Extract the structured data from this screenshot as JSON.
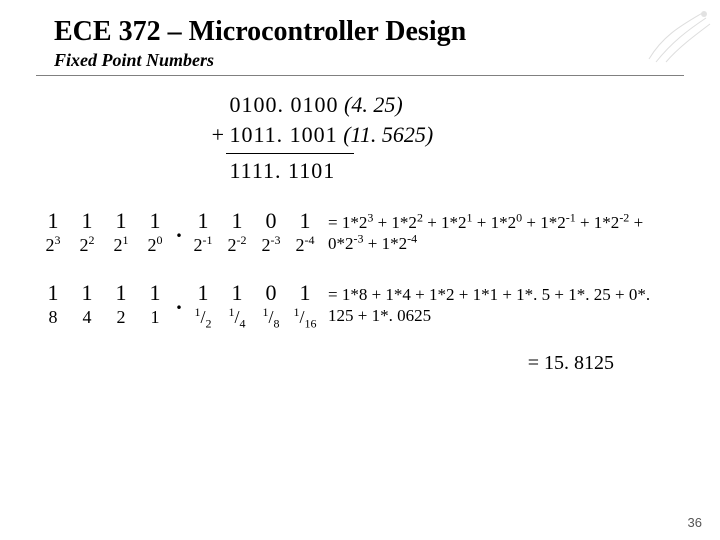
{
  "title": "ECE 372 – Microcontroller Design",
  "subtitle": "Fixed Point Numbers",
  "page_number": "36",
  "colors": {
    "text": "#000000",
    "background": "#ffffff",
    "rule": "#808080"
  },
  "equation": {
    "line1_bits": "0100. 0100",
    "line1_val": "(4. 25)",
    "plus": "+",
    "line2_bits": "1011. 1001",
    "line2_val": "(11. 5625)",
    "result_bits": "1111. 1101"
  },
  "row1": {
    "top": [
      "1",
      "1",
      "1",
      "1",
      "1",
      "1",
      "0",
      "1"
    ],
    "bot_html": [
      "2<sup>3</sup>",
      "2<sup>2</sup>",
      "2<sup>1</sup>",
      "2<sup>0</sup>",
      "2<sup>-1</sup>",
      "2<sup>-2</sup>",
      "2<sup>-3</sup>",
      "2<sup>-4</sup>"
    ],
    "explain_html": "= 1*2<sup>3</sup> + 1*2<sup>2</sup> + 1*2<sup>1</sup> + 1*2<sup>0</sup> + 1*2<sup>-1</sup> + 1*2<sup>-2</sup> + 0*2<sup>-3</sup> + 1*2<sup>-4</sup>"
  },
  "row2": {
    "top": [
      "1",
      "1",
      "1",
      "1",
      "1",
      "1",
      "0",
      "1"
    ],
    "bot_html": [
      "8",
      "4",
      "2",
      "1",
      "<sup>1</sup>/<sub>2</sub>",
      "<sup>1</sup>/<sub>4</sub>",
      "<sup>1</sup>/<sub>8</sub>",
      "<sup>1</sup>/<sub>16</sub>"
    ],
    "explain_html": "= 1*8 + 1*4 + 1*2 + 1*1 + 1*. 5 + 1*. 25 + 0*. 125 + 1*. 0625"
  },
  "final": "= 15. 8125",
  "dot": "."
}
